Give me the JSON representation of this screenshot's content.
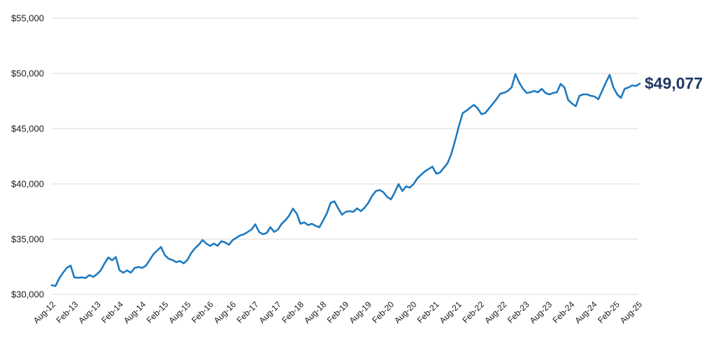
{
  "chart_data": {
    "type": "line",
    "title": "",
    "xlabel": "",
    "ylabel": "",
    "frequency": "monthly",
    "x_start": "Aug-12",
    "x_end": "Aug-25",
    "x_tick_labels": [
      "Aug-12",
      "Feb-13",
      "Aug-13",
      "Feb-14",
      "Aug-14",
      "Feb-15",
      "Aug-15",
      "Feb-16",
      "Aug-16",
      "Feb-17",
      "Aug-17",
      "Feb-18",
      "Aug-18",
      "Feb-19",
      "Aug-19",
      "Feb-20",
      "Aug-20",
      "Feb-21",
      "Aug-21",
      "Feb-22",
      "Aug-22",
      "Feb-23",
      "Aug-23",
      "Feb-24",
      "Aug-24",
      "Feb-25",
      "Aug-25"
    ],
    "y_ticks": [
      {
        "value": 30000,
        "label": "$30,000"
      },
      {
        "value": 35000,
        "label": "$35,000"
      },
      {
        "value": 40000,
        "label": "$40,000"
      },
      {
        "value": 45000,
        "label": "$45,000"
      },
      {
        "value": 50000,
        "label": "$50,000"
      },
      {
        "value": 55000,
        "label": "$55,000"
      }
    ],
    "ylim": [
      30000,
      55000
    ],
    "grid": true,
    "legend": "none",
    "end_label": "$49,077",
    "last_value": 49077,
    "line_color": "#1e7ac0",
    "end_label_color": "#1f3864",
    "grid_color": "#d9d9d9",
    "series": [
      {
        "name": "value",
        "values": [
          30820,
          30760,
          31455,
          31960,
          32400,
          32600,
          31540,
          31500,
          31540,
          31480,
          31750,
          31580,
          31820,
          32170,
          32800,
          33340,
          33080,
          33380,
          32170,
          31960,
          32170,
          31960,
          32390,
          32490,
          32390,
          32600,
          33120,
          33650,
          33970,
          34290,
          33550,
          33230,
          33120,
          32910,
          33020,
          32810,
          33120,
          33750,
          34180,
          34495,
          34915,
          34600,
          34390,
          34600,
          34390,
          34810,
          34700,
          34495,
          34915,
          35125,
          35340,
          35445,
          35655,
          35865,
          36350,
          35655,
          35445,
          35550,
          36075,
          35655,
          35865,
          36390,
          36710,
          37130,
          37760,
          37300,
          36390,
          36520,
          36265,
          36390,
          36200,
          36075,
          36700,
          37340,
          38290,
          38420,
          37785,
          37215,
          37470,
          37530,
          37470,
          37785,
          37530,
          37850,
          38290,
          38925,
          39345,
          39450,
          39240,
          38815,
          38600,
          39240,
          39980,
          39345,
          39770,
          39665,
          39980,
          40505,
          40820,
          41140,
          41350,
          41560,
          40925,
          41030,
          41455,
          41875,
          42700,
          43900,
          45200,
          46390,
          46625,
          46900,
          47150,
          46835,
          46310,
          46415,
          46835,
          47255,
          47675,
          48165,
          48245,
          48415,
          48735,
          49935,
          49175,
          48605,
          48225,
          48290,
          48415,
          48290,
          48605,
          48225,
          48100,
          48225,
          48290,
          49050,
          48730,
          47595,
          47280,
          47025,
          47975,
          48100,
          48100,
          47975,
          47910,
          47660,
          48415,
          49175,
          49870,
          48730,
          48100,
          47785,
          48605,
          48730,
          48920,
          48860,
          49077
        ]
      }
    ]
  }
}
